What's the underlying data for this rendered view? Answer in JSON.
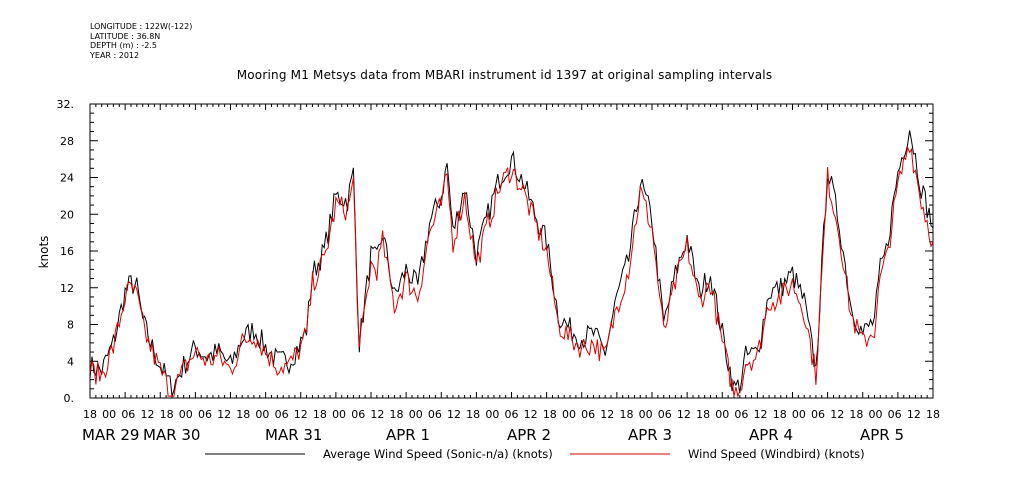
{
  "meta": {
    "longitude": "LONGITUDE : 122W(-122)",
    "latitude": "LATITUDE : 36.8N",
    "depth": "DEPTH (m) : -2.5",
    "year": "YEAR : 2012"
  },
  "chart_data": {
    "type": "line",
    "title": "Mooring M1 Metsys data from MBARI instrument id 1397 at original sampling intervals",
    "ylabel": "knots",
    "xlabel": "",
    "ylim": [
      0,
      32
    ],
    "yticks": [
      0.0,
      4.0,
      8.0,
      12.0,
      16.0,
      20.0,
      24.0,
      28.0,
      32.0
    ],
    "ytick_labels": [
      "0.",
      "4",
      "8",
      "12",
      "16",
      "20",
      "24",
      "28",
      "32."
    ],
    "xlim_hours": [
      -6,
      138
    ],
    "x_hour_labels": [
      "18",
      "00",
      "06",
      "12",
      "18",
      "00",
      "06",
      "12",
      "18",
      "00",
      "06",
      "12",
      "18",
      "00",
      "06",
      "12",
      "18",
      "00",
      "06",
      "12",
      "18",
      "00",
      "06",
      "12",
      "18",
      "00",
      "06",
      "12",
      "18",
      "00",
      "06",
      "12",
      "18",
      "00",
      "06",
      "12",
      "18",
      "00",
      "06",
      "12",
      "18",
      "00",
      "06",
      "12",
      "18"
    ],
    "x_day_labels": [
      {
        "label": "MAR 29",
        "hour": 0
      },
      {
        "label": "MAR 30",
        "hour": 24
      },
      {
        "label": "MAR 31",
        "hour": 48
      },
      {
        "label": "APR  1",
        "hour": 72
      },
      {
        "label": "APR  2",
        "hour": 96
      },
      {
        "label": "APR  3",
        "hour": 120
      },
      {
        "label": "APR  4",
        "hour": 144
      },
      {
        "label": "APR  5",
        "hour": 168
      }
    ],
    "grid": false,
    "legend_position": "bottom",
    "series": [
      {
        "name": "Average Wind Speed (Sonic-n/a) (knots)",
        "color": "#000000",
        "x": [
          -6,
          -4,
          -2,
          0,
          1,
          2,
          3,
          4,
          6,
          8,
          10,
          12,
          14,
          16,
          18,
          20,
          22,
          24,
          26,
          28,
          30,
          31,
          32,
          34,
          36,
          38,
          39,
          40,
          42,
          43,
          44,
          46,
          48,
          50,
          52,
          54,
          55,
          56,
          58,
          60,
          62,
          64,
          66,
          68,
          70,
          72,
          74,
          76,
          78,
          80,
          82,
          84,
          86,
          88,
          90,
          92,
          94,
          96,
          98,
          100,
          102,
          104,
          105,
          106,
          108,
          110,
          112,
          114,
          116,
          118,
          120,
          122,
          124,
          126,
          128,
          129,
          130,
          132,
          134,
          136,
          138
        ],
        "values": [
          3.5,
          3.0,
          6.0,
          11.5,
          12.5,
          12.0,
          8.5,
          6.5,
          3.5,
          1.0,
          3.5,
          5.5,
          4.5,
          5.0,
          3.5,
          6.5,
          7.5,
          5.5,
          4.0,
          4.0,
          6.0,
          7.5,
          13.5,
          16.0,
          22.0,
          21.5,
          24.5,
          6.0,
          15.5,
          15.0,
          18.0,
          11.0,
          14.0,
          12.0,
          19.0,
          22.0,
          25.5,
          18.0,
          23.0,
          15.5,
          20.0,
          24.0,
          26.0,
          23.5,
          20.0,
          17.0,
          9.0,
          7.5,
          6.5,
          7.0,
          5.0,
          11.0,
          15.0,
          23.5,
          19.5,
          8.0,
          13.5,
          17.5,
          11.5,
          13.5,
          7.0,
          1.0,
          1.5,
          4.5,
          5.0,
          11.5,
          12.0,
          13.5,
          10.5,
          3.0,
          25.0,
          19.0,
          10.0,
          7.0,
          8.5,
          14.0,
          16.0,
          24.5,
          29.5,
          23.0,
          18.5
        ]
      },
      {
        "name": "Wind Speed (Windbird) (knots)",
        "color": "#dd0000",
        "x": [
          -6,
          -4,
          -2,
          0,
          1,
          2,
          3,
          4,
          6,
          8,
          10,
          12,
          14,
          16,
          18,
          20,
          22,
          24,
          26,
          28,
          30,
          31,
          32,
          34,
          36,
          38,
          39,
          40,
          42,
          43,
          44,
          46,
          48,
          50,
          52,
          54,
          55,
          56,
          58,
          60,
          62,
          64,
          66,
          68,
          70,
          72,
          74,
          76,
          78,
          80,
          82,
          84,
          86,
          88,
          90,
          92,
          94,
          96,
          98,
          100,
          102,
          104,
          105,
          106,
          108,
          110,
          112,
          114,
          116,
          118,
          120,
          122,
          124,
          126,
          128,
          129,
          130,
          132,
          134,
          136,
          138
        ],
        "values": [
          3.0,
          2.5,
          5.5,
          11.0,
          12.0,
          11.0,
          8.0,
          6.0,
          3.0,
          0.5,
          3.0,
          5.0,
          4.0,
          4.5,
          3.0,
          6.0,
          7.0,
          5.0,
          3.5,
          3.5,
          5.5,
          7.0,
          12.5,
          15.0,
          21.0,
          20.5,
          23.5,
          5.0,
          14.5,
          14.0,
          17.0,
          10.0,
          13.0,
          11.0,
          18.0,
          21.0,
          24.0,
          17.0,
          22.0,
          14.5,
          19.0,
          23.0,
          25.0,
          22.5,
          19.0,
          16.0,
          8.0,
          6.5,
          5.5,
          6.0,
          4.5,
          10.0,
          14.0,
          22.5,
          18.5,
          7.0,
          12.5,
          16.5,
          10.5,
          12.5,
          6.0,
          0.5,
          1.0,
          4.0,
          4.5,
          10.5,
          11.0,
          12.5,
          9.5,
          2.5,
          24.0,
          18.0,
          9.0,
          6.0,
          7.5,
          13.0,
          15.0,
          23.0,
          28.0,
          21.5,
          17.0
        ]
      }
    ]
  }
}
